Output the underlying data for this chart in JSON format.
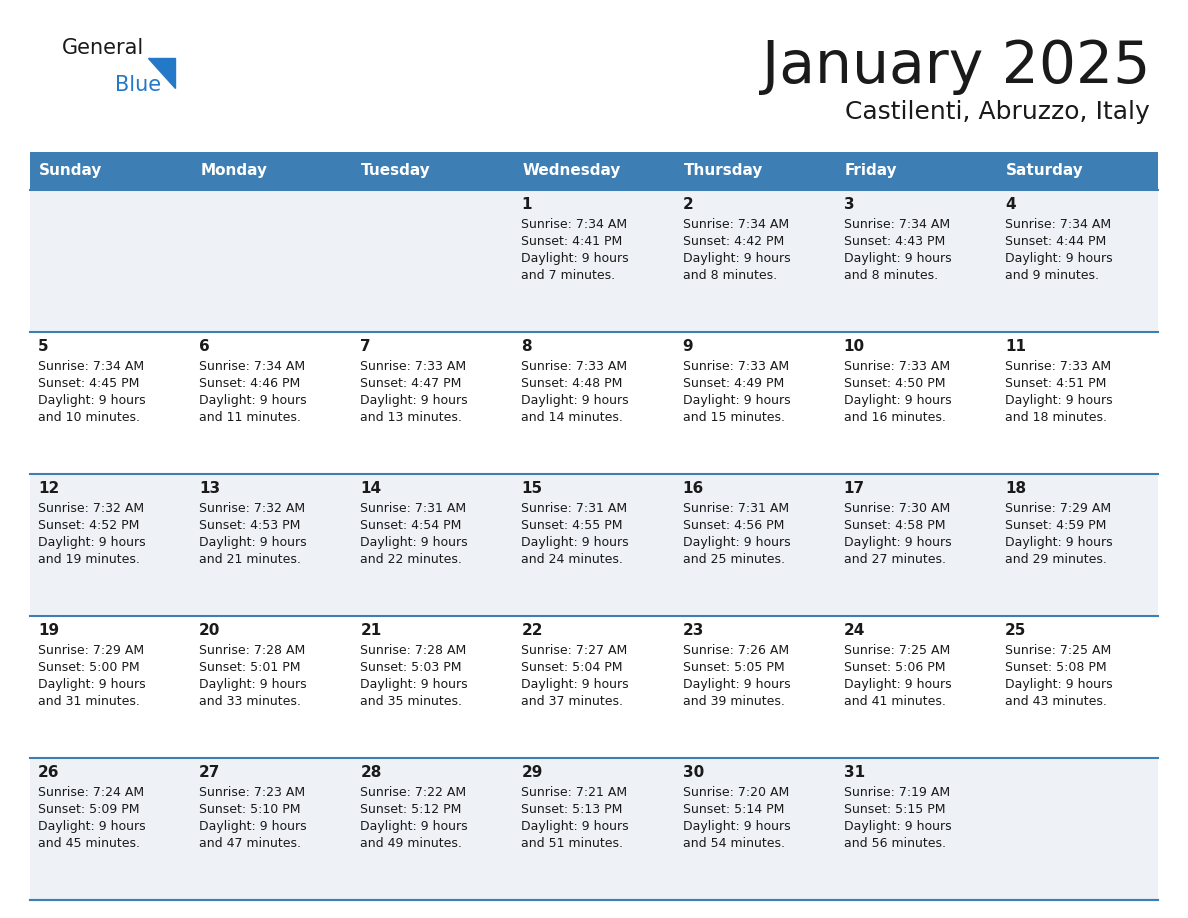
{
  "title": "January 2025",
  "subtitle": "Castilenti, Abruzzo, Italy",
  "days_of_week": [
    "Sunday",
    "Monday",
    "Tuesday",
    "Wednesday",
    "Thursday",
    "Friday",
    "Saturday"
  ],
  "header_bg": "#3d7fb5",
  "header_text": "#ffffff",
  "cell_bg_odd": "#eef2f7",
  "cell_bg_even": "#ffffff",
  "row_line_color": "#3d7fb5",
  "title_color": "#1a1a1a",
  "subtitle_color": "#1a1a1a",
  "day_number_color": "#1a1a1a",
  "cell_text_color": "#1a1a1a",
  "logo_dark_color": "#1a1a1a",
  "logo_blue_color": "#2478c8",
  "logo_triangle_color": "#2478c8",
  "calendar": [
    [
      {
        "day": "",
        "sunrise": "",
        "sunset": "",
        "daylight": ""
      },
      {
        "day": "",
        "sunrise": "",
        "sunset": "",
        "daylight": ""
      },
      {
        "day": "",
        "sunrise": "",
        "sunset": "",
        "daylight": ""
      },
      {
        "day": "1",
        "sunrise": "7:34 AM",
        "sunset": "4:41 PM",
        "daylight": "9 hours and 7 minutes."
      },
      {
        "day": "2",
        "sunrise": "7:34 AM",
        "sunset": "4:42 PM",
        "daylight": "9 hours and 8 minutes."
      },
      {
        "day": "3",
        "sunrise": "7:34 AM",
        "sunset": "4:43 PM",
        "daylight": "9 hours and 8 minutes."
      },
      {
        "day": "4",
        "sunrise": "7:34 AM",
        "sunset": "4:44 PM",
        "daylight": "9 hours and 9 minutes."
      }
    ],
    [
      {
        "day": "5",
        "sunrise": "7:34 AM",
        "sunset": "4:45 PM",
        "daylight": "9 hours and 10 minutes."
      },
      {
        "day": "6",
        "sunrise": "7:34 AM",
        "sunset": "4:46 PM",
        "daylight": "9 hours and 11 minutes."
      },
      {
        "day": "7",
        "sunrise": "7:33 AM",
        "sunset": "4:47 PM",
        "daylight": "9 hours and 13 minutes."
      },
      {
        "day": "8",
        "sunrise": "7:33 AM",
        "sunset": "4:48 PM",
        "daylight": "9 hours and 14 minutes."
      },
      {
        "day": "9",
        "sunrise": "7:33 AM",
        "sunset": "4:49 PM",
        "daylight": "9 hours and 15 minutes."
      },
      {
        "day": "10",
        "sunrise": "7:33 AM",
        "sunset": "4:50 PM",
        "daylight": "9 hours and 16 minutes."
      },
      {
        "day": "11",
        "sunrise": "7:33 AM",
        "sunset": "4:51 PM",
        "daylight": "9 hours and 18 minutes."
      }
    ],
    [
      {
        "day": "12",
        "sunrise": "7:32 AM",
        "sunset": "4:52 PM",
        "daylight": "9 hours and 19 minutes."
      },
      {
        "day": "13",
        "sunrise": "7:32 AM",
        "sunset": "4:53 PM",
        "daylight": "9 hours and 21 minutes."
      },
      {
        "day": "14",
        "sunrise": "7:31 AM",
        "sunset": "4:54 PM",
        "daylight": "9 hours and 22 minutes."
      },
      {
        "day": "15",
        "sunrise": "7:31 AM",
        "sunset": "4:55 PM",
        "daylight": "9 hours and 24 minutes."
      },
      {
        "day": "16",
        "sunrise": "7:31 AM",
        "sunset": "4:56 PM",
        "daylight": "9 hours and 25 minutes."
      },
      {
        "day": "17",
        "sunrise": "7:30 AM",
        "sunset": "4:58 PM",
        "daylight": "9 hours and 27 minutes."
      },
      {
        "day": "18",
        "sunrise": "7:29 AM",
        "sunset": "4:59 PM",
        "daylight": "9 hours and 29 minutes."
      }
    ],
    [
      {
        "day": "19",
        "sunrise": "7:29 AM",
        "sunset": "5:00 PM",
        "daylight": "9 hours and 31 minutes."
      },
      {
        "day": "20",
        "sunrise": "7:28 AM",
        "sunset": "5:01 PM",
        "daylight": "9 hours and 33 minutes."
      },
      {
        "day": "21",
        "sunrise": "7:28 AM",
        "sunset": "5:03 PM",
        "daylight": "9 hours and 35 minutes."
      },
      {
        "day": "22",
        "sunrise": "7:27 AM",
        "sunset": "5:04 PM",
        "daylight": "9 hours and 37 minutes."
      },
      {
        "day": "23",
        "sunrise": "7:26 AM",
        "sunset": "5:05 PM",
        "daylight": "9 hours and 39 minutes."
      },
      {
        "day": "24",
        "sunrise": "7:25 AM",
        "sunset": "5:06 PM",
        "daylight": "9 hours and 41 minutes."
      },
      {
        "day": "25",
        "sunrise": "7:25 AM",
        "sunset": "5:08 PM",
        "daylight": "9 hours and 43 minutes."
      }
    ],
    [
      {
        "day": "26",
        "sunrise": "7:24 AM",
        "sunset": "5:09 PM",
        "daylight": "9 hours and 45 minutes."
      },
      {
        "day": "27",
        "sunrise": "7:23 AM",
        "sunset": "5:10 PM",
        "daylight": "9 hours and 47 minutes."
      },
      {
        "day": "28",
        "sunrise": "7:22 AM",
        "sunset": "5:12 PM",
        "daylight": "9 hours and 49 minutes."
      },
      {
        "day": "29",
        "sunrise": "7:21 AM",
        "sunset": "5:13 PM",
        "daylight": "9 hours and 51 minutes."
      },
      {
        "day": "30",
        "sunrise": "7:20 AM",
        "sunset": "5:14 PM",
        "daylight": "9 hours and 54 minutes."
      },
      {
        "day": "31",
        "sunrise": "7:19 AM",
        "sunset": "5:15 PM",
        "daylight": "9 hours and 56 minutes."
      },
      {
        "day": "",
        "sunrise": "",
        "sunset": "",
        "daylight": ""
      }
    ]
  ]
}
